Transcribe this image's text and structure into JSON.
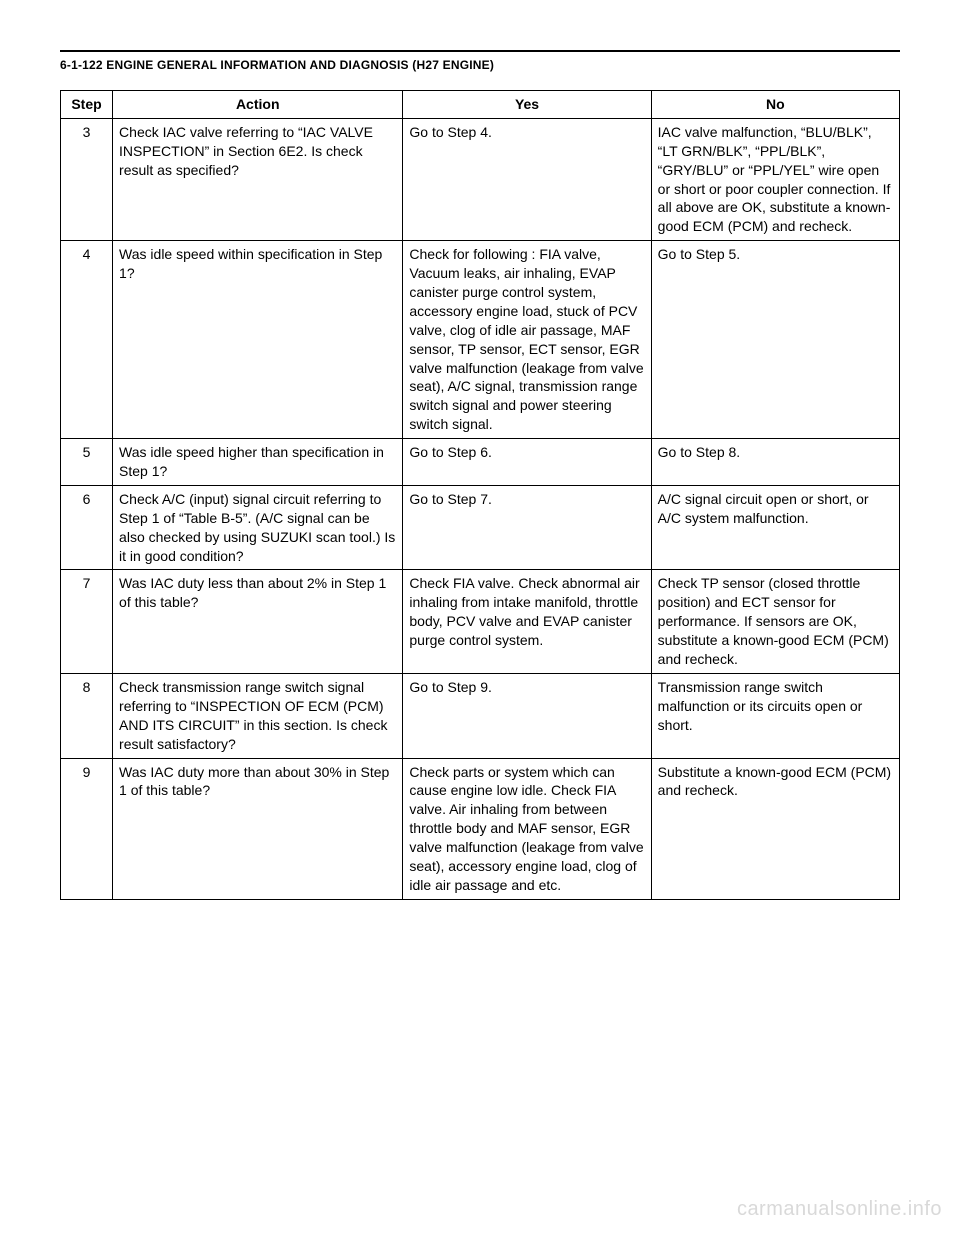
{
  "header": {
    "title": "6-1-122 ENGINE GENERAL INFORMATION AND DIAGNOSIS (H27 ENGINE)"
  },
  "table": {
    "columns": [
      "Step",
      "Action",
      "Yes",
      "No"
    ],
    "rows": [
      {
        "step": "3",
        "action": "Check IAC valve referring to “IAC VALVE INSPECTION” in Section 6E2.\nIs check result as specified?",
        "yes": "Go to Step 4.",
        "no": "IAC valve malfunction, “BLU/BLK”, “LT GRN/BLK”, “PPL/BLK”, “GRY/BLU” or “PPL/YEL” wire open or short or poor coupler connection.\nIf all above are OK, substitute a known-good ECM (PCM) and recheck."
      },
      {
        "step": "4",
        "action": "Was idle speed within specification in Step 1?",
        "yes": "Check for following :\nFIA valve, Vacuum leaks, air inhaling, EVAP canister purge control system, accessory engine load, stuck of PCV valve, clog of idle air passage, MAF sensor, TP sensor, ECT sensor, EGR valve malfunction (leakage from valve seat), A/C signal, transmission range switch signal and power steering switch signal.",
        "no": "Go to Step 5."
      },
      {
        "step": "5",
        "action": "Was idle speed higher than specification in Step 1?",
        "yes": "Go to Step 6.",
        "no": "Go to Step 8."
      },
      {
        "step": "6",
        "action": "Check A/C (input) signal circuit referring to Step 1 of “Table B-5”. (A/C signal can be also checked by using SUZUKI scan tool.)\nIs it in good condition?",
        "yes": "Go to Step 7.",
        "no": "A/C signal circuit open or short, or A/C system malfunction."
      },
      {
        "step": "7",
        "action": "Was IAC duty less than about 2% in Step 1 of this table?",
        "yes": "Check FIA valve.\nCheck abnormal air inhaling from intake manifold, throttle body, PCV valve and EVAP canister purge control system.",
        "no": "Check TP sensor (closed throttle position) and ECT sensor for performance.\nIf sensors are OK, substitute a known-good ECM (PCM) and recheck."
      },
      {
        "step": "8",
        "action": "Check transmission range switch signal referring to “INSPECTION OF ECM (PCM) AND ITS CIRCUIT” in this section.\nIs check result satisfactory?",
        "yes": "Go to Step 9.",
        "no": "Transmission range switch malfunction or its circuits open or short."
      },
      {
        "step": "9",
        "action": "Was IAC duty more than about 30% in Step 1 of this table?",
        "yes": "Check parts or system which can cause engine low idle.\nCheck FIA valve.\nAir inhaling from between throttle body and MAF sensor, EGR valve malfunction (leakage from valve seat), accessory engine load, clog of idle air passage and etc.",
        "no": "Substitute a known-good ECM (PCM) and recheck."
      }
    ]
  },
  "watermark": "carmanualsonline.info"
}
